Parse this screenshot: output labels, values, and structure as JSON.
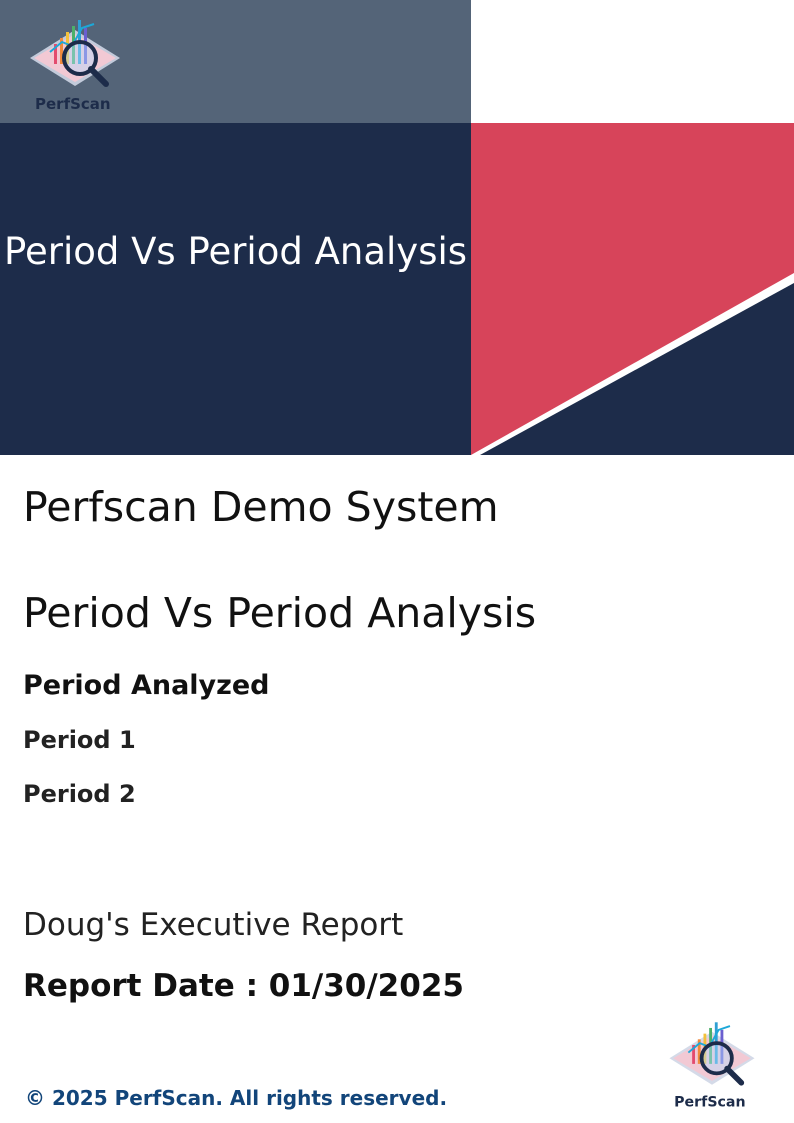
{
  "header": {
    "banner_title": "Period Vs Period Analysis",
    "logo_text": "PerfScan",
    "colors": {
      "slate": "#546478",
      "navy": "#1d2c4a",
      "red": "#d7445a"
    }
  },
  "main": {
    "system_name": "Perfscan Demo System",
    "analysis_title": "Period Vs Period Analysis",
    "period_heading": "Period Analyzed",
    "periods": [
      "Period 1",
      "Period 2"
    ],
    "report_name": "Doug's Executive Report",
    "report_date": "Report Date : 01/30/2025"
  },
  "footer": {
    "copyright": "© 2025 PerfScan. All rights reserved.",
    "logo_text": "PerfScan"
  }
}
